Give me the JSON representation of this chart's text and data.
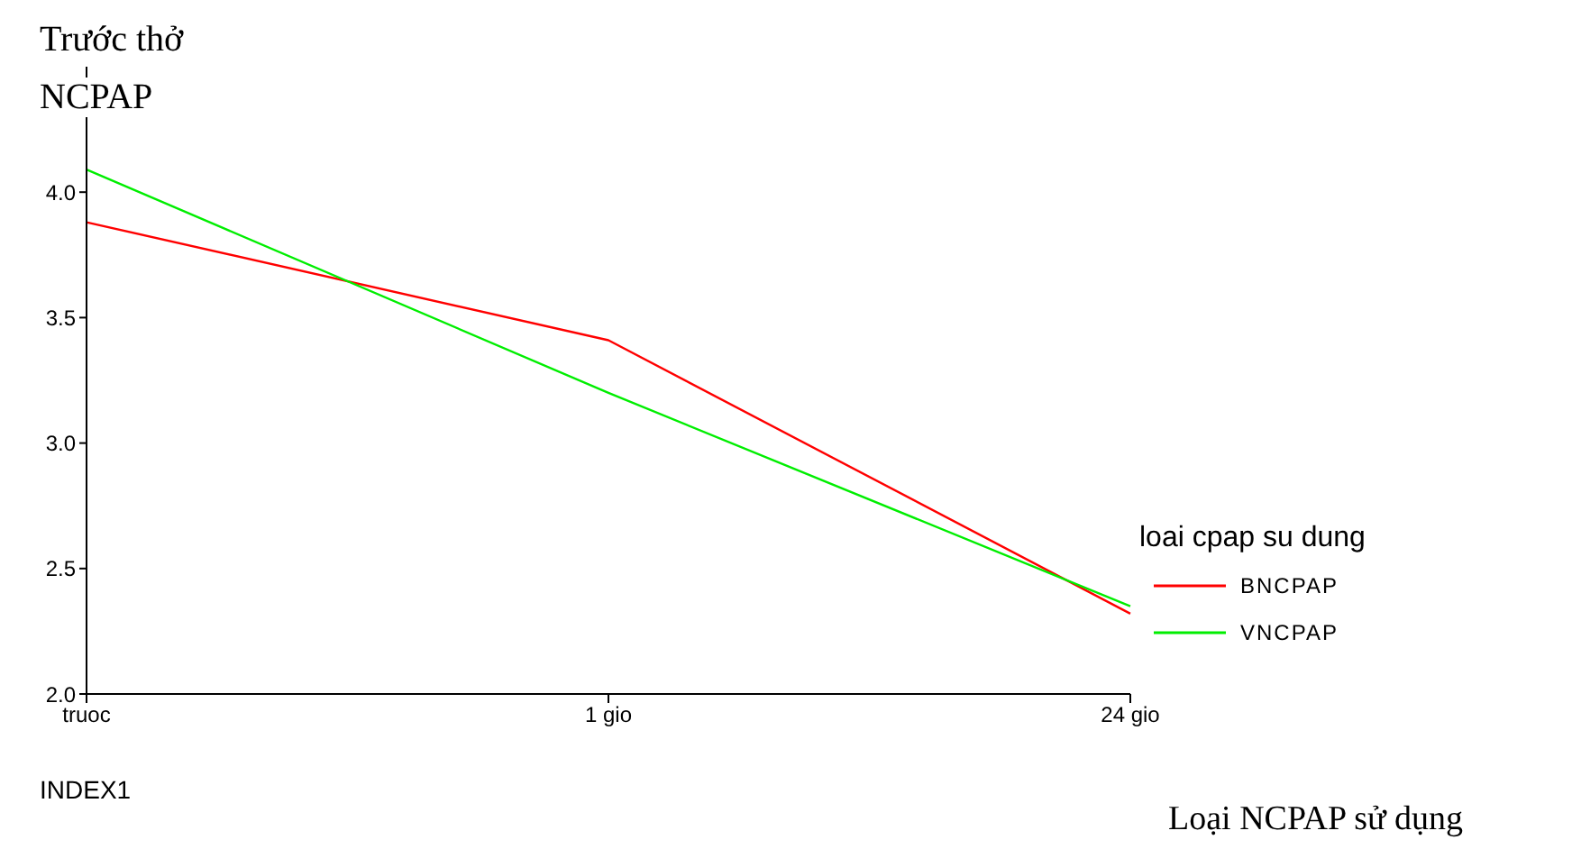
{
  "chart_data": {
    "type": "line",
    "ylabel": "Trước thở NCPAP",
    "legend_title": "loai cpap su dung",
    "annotations": [
      "INDEX1",
      "Loại NCPAP sử dụng"
    ],
    "categories": [
      "truoc",
      "1 gio",
      "24 gio"
    ],
    "series": [
      {
        "name": "BNCPAP",
        "color": "#ff0000",
        "values": [
          3.88,
          3.41,
          2.32
        ]
      },
      {
        "name": "VNCPAP",
        "color": "#00ee00",
        "values": [
          4.09,
          3.2,
          2.35
        ]
      }
    ],
    "ylim": [
      2,
      4.5
    ],
    "yticks": [
      {
        "value": 2,
        "label": "2.0"
      },
      {
        "value": 2.5,
        "label": "2.5"
      },
      {
        "value": 3,
        "label": "3.0"
      },
      {
        "value": 3.5,
        "label": "3.5"
      },
      {
        "value": 4,
        "label": "4.0"
      }
    ],
    "grid": false,
    "legend": "right",
    "marker": "none",
    "line_style": "solid"
  }
}
